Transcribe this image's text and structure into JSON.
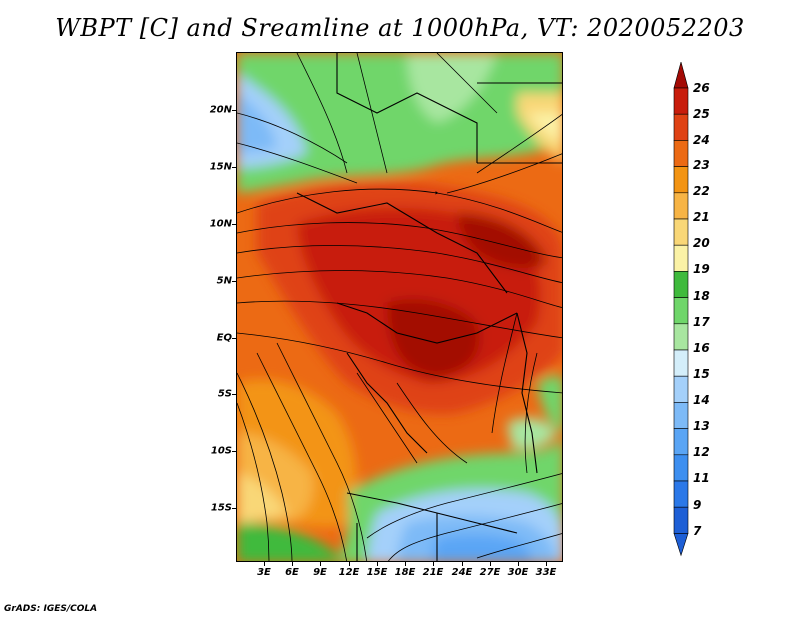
{
  "title": "WBPT [C] and Sreamline at 1000hPa, VT: 2020052203",
  "footer": "GrADS: IGES/COLA",
  "colors": {
    "c7": "#1e5fd6",
    "c9": "#2b78e8",
    "c11": "#3d8ff0",
    "c12": "#5aa5f5",
    "c13": "#7dbaf7",
    "c14": "#a4d0fa",
    "c15": "#d4eefa",
    "c16": "#a8e6a0",
    "c17": "#6fd66a",
    "c18": "#3fba3c",
    "c19": "#fbf2a6",
    "c20": "#f9d777",
    "c21": "#f7b445",
    "c22": "#f39413",
    "c23": "#ec6a14",
    "c24": "#df4214",
    "c25": "#c81d0c",
    "c26": "#a30a05"
  },
  "map": {
    "lat_labels": [
      "20N",
      "15N",
      "10N",
      "5N",
      "EQ",
      "5S",
      "10S",
      "15S"
    ],
    "lon_labels": [
      "3E",
      "6E",
      "9E",
      "12E",
      "15E",
      "18E",
      "21E",
      "24E",
      "27E",
      "30E",
      "33E"
    ]
  },
  "colorbar": {
    "levels": [
      "26",
      "25",
      "24",
      "23",
      "22",
      "21",
      "20",
      "19",
      "18",
      "17",
      "16",
      "15",
      "14",
      "13",
      "12",
      "11",
      "9",
      "7"
    ]
  }
}
